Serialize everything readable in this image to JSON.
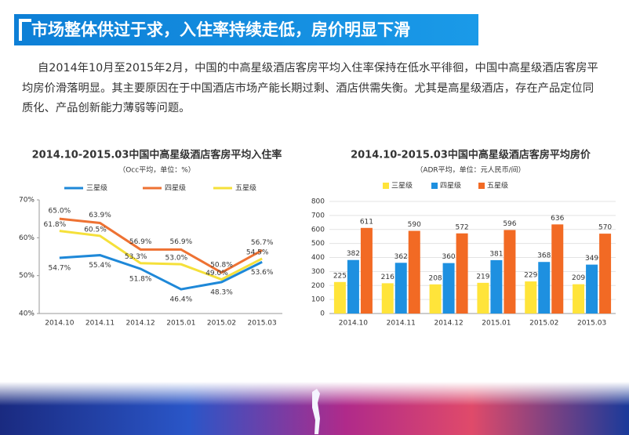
{
  "header": {
    "title": "市场整体供过于求，入住率持续走低，房价明显下滑"
  },
  "paragraph": [
    "自2014年10月至2015年2月，中国的中高星级酒店客房平均入住率保持在低水平徘徊，中国中高星级酒店客房平",
    "均房价滑落明显。其主要原因在于中国酒店市场产能长期过剩、酒店供需失衡。尤其是高星级酒店，存在产品定位同",
    "质化、产品创新能力薄弱等问题。"
  ],
  "chart_data": [
    {
      "type": "line",
      "title": "2014.10-2015.03中国中高星级酒店客房平均入住率",
      "subtitle": "（Occ平均，单位：%）",
      "categories": [
        "2014.10",
        "2014.11",
        "2014.12",
        "2015.01",
        "2015.02",
        "2015.03"
      ],
      "series": [
        {
          "name": "三星级",
          "color": "#1e88d8",
          "values": [
            54.7,
            55.4,
            51.8,
            46.4,
            48.3,
            53.6
          ],
          "value_labels": [
            "54.7%",
            "55.4%",
            "51.8%",
            "46.4%",
            "48.3%",
            "53.6%"
          ]
        },
        {
          "name": "四星级",
          "color": "#ee7233",
          "values": [
            65.0,
            63.9,
            56.9,
            56.9,
            50.8,
            56.7
          ],
          "value_labels": [
            "65.0%",
            "63.9%",
            "56.9%",
            "56.9%",
            "50.8%",
            "56.7%"
          ]
        },
        {
          "name": "五星级",
          "color": "#f5e03a",
          "values": [
            61.8,
            60.5,
            53.3,
            53.0,
            49.0,
            54.5
          ],
          "value_labels": [
            "61.8%",
            "60.5%",
            "53.3%",
            "53.0%",
            "49.0%",
            "54.5%"
          ]
        }
      ],
      "ylim": [
        40,
        70
      ],
      "yticks": [
        {
          "value": 40,
          "label": "40%"
        },
        {
          "value": 50,
          "label": "50%"
        },
        {
          "value": 60,
          "label": "60%"
        },
        {
          "value": 70,
          "label": "70%"
        }
      ],
      "grid": false
    },
    {
      "type": "bar",
      "title": "2014.10-2015.03中国中高星级酒店客房平均房价",
      "subtitle": "（ADR平均，单位：元人民币/间）",
      "categories": [
        "2014.10",
        "2014.11",
        "2014.12",
        "2015.01",
        "2015.02",
        "2015.03"
      ],
      "series": [
        {
          "name": "三星级",
          "color": "#ffe43a",
          "values": [
            225,
            216,
            208,
            219,
            229,
            209
          ]
        },
        {
          "name": "四星级",
          "color": "#1e90e0",
          "values": [
            382,
            362,
            360,
            381,
            368,
            349
          ]
        },
        {
          "name": "五星级",
          "color": "#f26a24",
          "values": [
            611,
            590,
            572,
            596,
            636,
            570
          ]
        }
      ],
      "ylim": [
        0,
        800
      ],
      "yticks": [
        0,
        100,
        200,
        300,
        400,
        500,
        600,
        700,
        800
      ],
      "grid": true
    }
  ]
}
